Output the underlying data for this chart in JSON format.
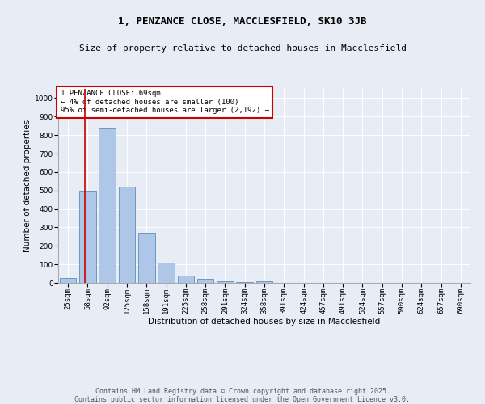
{
  "title": "1, PENZANCE CLOSE, MACCLESFIELD, SK10 3JB",
  "subtitle": "Size of property relative to detached houses in Macclesfield",
  "xlabel": "Distribution of detached houses by size in Macclesfield",
  "ylabel": "Number of detached properties",
  "categories": [
    "25sqm",
    "58sqm",
    "92sqm",
    "125sqm",
    "158sqm",
    "191sqm",
    "225sqm",
    "258sqm",
    "291sqm",
    "324sqm",
    "358sqm",
    "391sqm",
    "424sqm",
    "457sqm",
    "491sqm",
    "524sqm",
    "557sqm",
    "590sqm",
    "624sqm",
    "657sqm",
    "690sqm"
  ],
  "values": [
    28,
    493,
    835,
    520,
    270,
    108,
    38,
    22,
    10,
    5,
    8,
    0,
    0,
    0,
    0,
    0,
    0,
    0,
    0,
    0,
    0
  ],
  "bar_color": "#aec6e8",
  "bar_edge_color": "#5a8fc0",
  "vline_color": "#cc0000",
  "vline_x": 0.85,
  "annotation_lines": [
    "1 PENZANCE CLOSE: 69sqm",
    "← 4% of detached houses are smaller (100)",
    "95% of semi-detached houses are larger (2,192) →"
  ],
  "annotation_box_color": "#ffffff",
  "annotation_box_edge_color": "#cc0000",
  "ylim": [
    0,
    1050
  ],
  "yticks": [
    0,
    100,
    200,
    300,
    400,
    500,
    600,
    700,
    800,
    900,
    1000
  ],
  "footer_line1": "Contains HM Land Registry data © Crown copyright and database right 2025.",
  "footer_line2": "Contains public sector information licensed under the Open Government Licence v3.0.",
  "bg_color": "#e8ecf5",
  "plot_bg_color": "#e8ecf5",
  "title_fontsize": 9,
  "subtitle_fontsize": 8,
  "axis_label_fontsize": 7.5,
  "tick_fontsize": 6.5,
  "annotation_fontsize": 6.5,
  "footer_fontsize": 6
}
